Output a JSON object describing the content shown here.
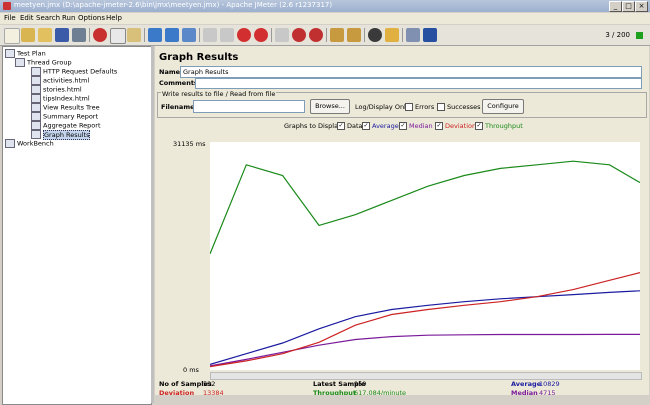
{
  "window": {
    "title": "meetyen.jmx (D:\\apache-jmeter-2.6\\bin\\jmx\\meetyen.jmx) - Apache JMeter (2.6 r1237317)",
    "min": "_",
    "max": "□",
    "close": "×"
  },
  "menu": [
    "File",
    "Edit",
    "Search",
    "Run",
    "Options",
    "Help"
  ],
  "toolbar": {
    "counter": "3 / 200"
  },
  "tree": [
    {
      "label": "Test Plan",
      "level": 0
    },
    {
      "label": "Thread Group",
      "level": 1
    },
    {
      "label": "HTTP Request Defaults",
      "level": 2
    },
    {
      "label": "activities.html",
      "level": 2
    },
    {
      "label": "stories.html",
      "level": 2
    },
    {
      "label": "tipsIndex.html",
      "level": 2
    },
    {
      "label": "View Results Tree",
      "level": 2
    },
    {
      "label": "Summary Report",
      "level": 2
    },
    {
      "label": "Aggregate Report",
      "level": 2
    },
    {
      "label": "Graph Results",
      "level": 2,
      "selected": true
    },
    {
      "label": "WorkBench",
      "level": 0
    }
  ],
  "panel": {
    "title": "Graph Results",
    "name_label": "Name:",
    "name_value": "Graph Results",
    "comments_label": "Comments:",
    "comments_value": "",
    "write_legend": "Write results to file / Read from file",
    "filename_label": "Filename",
    "filename_value": "",
    "browse": "Browse...",
    "logdisplay": "Log/Display Only:",
    "errors": "Errors",
    "successes": "Successes",
    "configure": "Configure",
    "graphs_to_display": "Graphs to Display"
  },
  "legend": [
    {
      "label": "Data",
      "color": "#000000"
    },
    {
      "label": "Average",
      "color": "#1a1aa0"
    },
    {
      "label": "Median",
      "color": "#7a1a9a"
    },
    {
      "label": "Deviation",
      "color": "#cc2222"
    },
    {
      "label": "Throughput",
      "color": "#1a8a1a"
    }
  ],
  "chart_data": {
    "type": "line",
    "ymax_label": "31135 ms",
    "ymin_label": "0 ms",
    "ylim": [
      0,
      31135
    ],
    "x": [
      0,
      50,
      100,
      150,
      200,
      250,
      300,
      350,
      400,
      450,
      500,
      550,
      592
    ],
    "series": [
      {
        "name": "Average",
        "color": "#1a1aa0",
        "values": [
          500,
          2000,
          3500,
          5500,
          7200,
          8200,
          8800,
          9300,
          9700,
          10000,
          10300,
          10600,
          10829
        ]
      },
      {
        "name": "Median",
        "color": "#7a1a9a",
        "values": [
          300,
          1200,
          2200,
          3200,
          4000,
          4400,
          4600,
          4650,
          4700,
          4700,
          4700,
          4710,
          4715
        ]
      },
      {
        "name": "Deviation",
        "color": "#cc2222",
        "values": [
          200,
          1000,
          2000,
          3600,
          6000,
          7500,
          8200,
          8800,
          9300,
          10000,
          11000,
          12300,
          13384
        ]
      },
      {
        "name": "Throughput",
        "color": "#1a8a1a",
        "values": [
          16000,
          28500,
          27000,
          20000,
          21500,
          23500,
          25500,
          27000,
          28000,
          28500,
          29000,
          28500,
          26000
        ]
      }
    ]
  },
  "stats": {
    "samples_label": "No of Samples",
    "samples_value": "592",
    "latest_label": "Latest Sample",
    "latest_value": "959",
    "average_label": "Average",
    "average_value": "10829",
    "deviation_label": "Deviation",
    "deviation_value": "13384",
    "throughput_label": "Throughput",
    "throughput_value": "617.084/minute",
    "median_label": "Median",
    "median_value": "4715"
  }
}
